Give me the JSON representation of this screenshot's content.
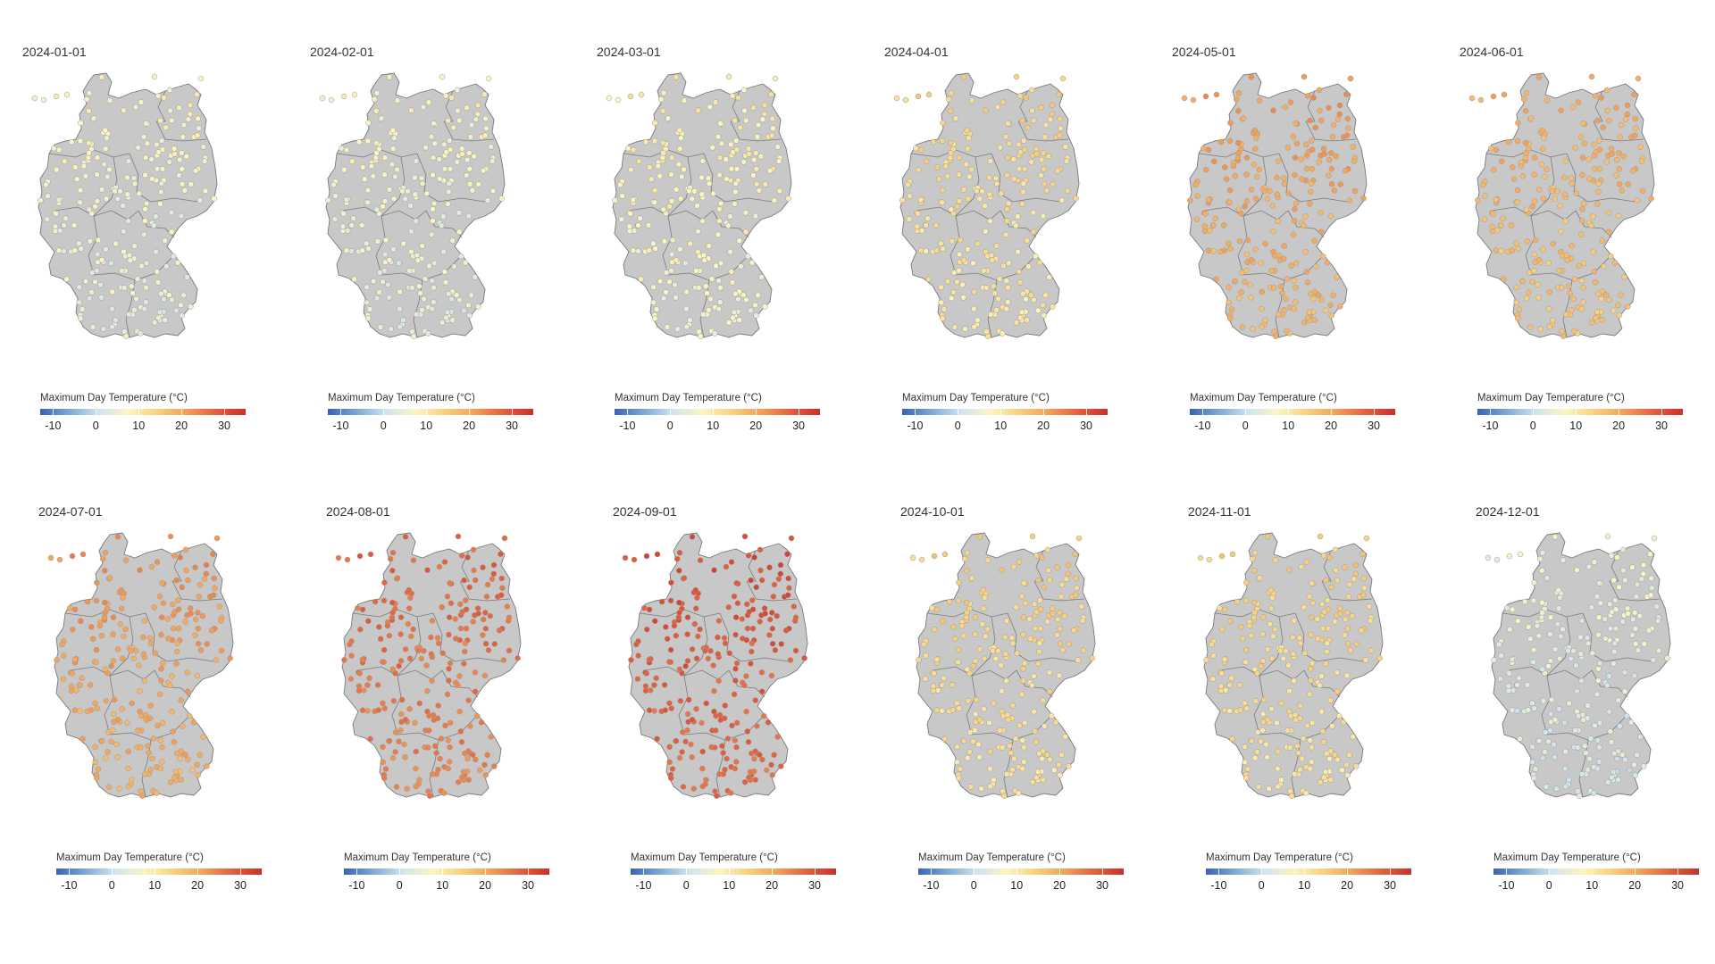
{
  "legend": {
    "title": "Maximum Day Temperature (°C)",
    "ticks": [
      "-10",
      "0",
      "10",
      "20",
      "30"
    ],
    "tick_values": [
      -10,
      0,
      10,
      20,
      30
    ],
    "range": [
      -13,
      35
    ],
    "colors": [
      "#3a62b4",
      "#7ea9d4",
      "#cfe4ef",
      "#fbf5c2",
      "#f8d17e",
      "#f2a057",
      "#e2603f",
      "#c9302c"
    ]
  },
  "map_colors": {
    "land": "#c8c8c8",
    "border": "#7a7a7a",
    "point_stroke": "#9a9a9a"
  },
  "panels": [
    {
      "date": "2024-01-01",
      "mean_temp": 6
    },
    {
      "date": "2024-02-01",
      "mean_temp": 6
    },
    {
      "date": "2024-03-01",
      "mean_temp": 8
    },
    {
      "date": "2024-04-01",
      "mean_temp": 12
    },
    {
      "date": "2024-05-01",
      "mean_temp": 20
    },
    {
      "date": "2024-06-01",
      "mean_temp": 18
    },
    {
      "date": "2024-07-01",
      "mean_temp": 21
    },
    {
      "date": "2024-08-01",
      "mean_temp": 26
    },
    {
      "date": "2024-09-01",
      "mean_temp": 29
    },
    {
      "date": "2024-10-01",
      "mean_temp": 13
    },
    {
      "date": "2024-11-01",
      "mean_temp": 13
    },
    {
      "date": "2024-12-01",
      "mean_temp": 4
    }
  ]
}
